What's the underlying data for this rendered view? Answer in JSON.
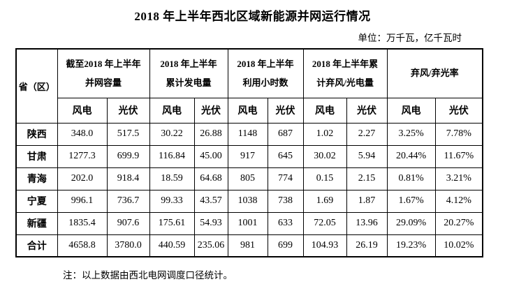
{
  "title": "2018 年上半年西北区域新能源并网运行情况",
  "unit_label": "单位：万千瓦，亿千瓦时",
  "note": "注：以上数据由西北电网调度口径统计。",
  "table": {
    "corner_header": "省（区）",
    "group_headers": [
      {
        "line1": "截至2018 年上半年",
        "line2": "并网容量"
      },
      {
        "line1": "2018 年上半年",
        "line2": "累计发电量"
      },
      {
        "line1": "2018 年上半年",
        "line2": "利用小时数"
      },
      {
        "line1": "2018 年上半年累",
        "line2": "计弃风/光电量"
      },
      {
        "line1": "弃风/弃光率",
        "line2": ""
      }
    ],
    "sub_headers": [
      "风电",
      "光伏",
      "风电",
      "光伏",
      "风电",
      "光伏",
      "风电",
      "光伏",
      "风电",
      "光伏"
    ],
    "rows": [
      {
        "province": "陕西",
        "values": [
          "348.0",
          "517.5",
          "30.22",
          "26.88",
          "1148",
          "687",
          "1.02",
          "2.27",
          "3.25%",
          "7.78%"
        ]
      },
      {
        "province": "甘肃",
        "values": [
          "1277.3",
          "699.9",
          "116.84",
          "45.00",
          "917",
          "645",
          "30.02",
          "5.94",
          "20.44%",
          "11.67%"
        ]
      },
      {
        "province": "青海",
        "values": [
          "202.0",
          "918.4",
          "18.59",
          "64.68",
          "805",
          "774",
          "0.15",
          "2.15",
          "0.81%",
          "3.21%"
        ]
      },
      {
        "province": "宁夏",
        "values": [
          "996.1",
          "736.7",
          "99.33",
          "43.57",
          "1038",
          "738",
          "1.69",
          "1.87",
          "1.67%",
          "4.12%"
        ]
      },
      {
        "province": "新疆",
        "values": [
          "1835.4",
          "907.6",
          "175.61",
          "54.93",
          "1001",
          "633",
          "72.05",
          "13.96",
          "29.09%",
          "20.27%"
        ]
      },
      {
        "province": "合计",
        "values": [
          "4658.8",
          "3780.0",
          "440.59",
          "235.06",
          "981",
          "699",
          "104.93",
          "26.19",
          "19.23%",
          "10.02%"
        ]
      }
    ]
  }
}
